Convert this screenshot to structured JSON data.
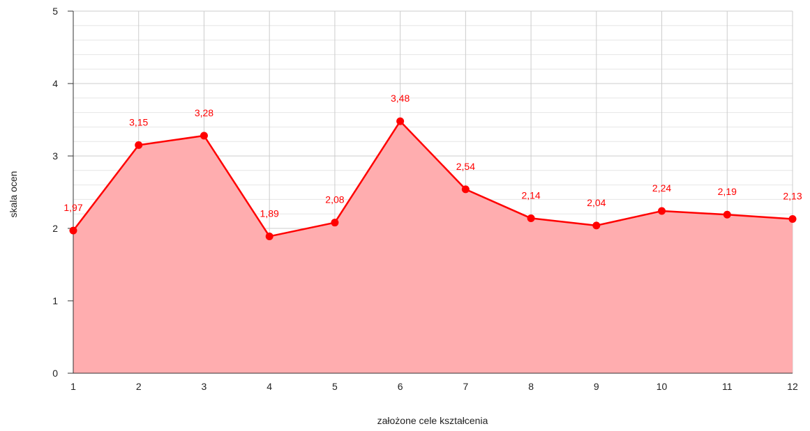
{
  "chart_data": {
    "type": "area",
    "title": "",
    "xlabel": "założone cele kształcenia",
    "ylabel": "skala ocen",
    "x": [
      1,
      2,
      3,
      4,
      5,
      6,
      7,
      8,
      9,
      10,
      11,
      12
    ],
    "x_tick_labels": [
      "1",
      "2",
      "3",
      "4",
      "5",
      "6",
      "7",
      "8",
      "9",
      "10",
      "11",
      "12"
    ],
    "y_tick_labels": [
      "0",
      "1",
      "2",
      "3",
      "4",
      "5"
    ],
    "values": [
      1.97,
      3.15,
      3.28,
      1.89,
      2.08,
      3.48,
      2.54,
      2.14,
      2.04,
      2.24,
      2.19,
      2.13
    ],
    "data_labels": [
      "1,97",
      "3,15",
      "3,28",
      "1,89",
      "2,08",
      "3,48",
      "2,54",
      "2,14",
      "2,04",
      "2,24",
      "2,19",
      "2,13"
    ],
    "ylim": [
      0,
      5
    ],
    "xlim": [
      1,
      12
    ],
    "grid": true,
    "minor_grid": true,
    "legend": "none",
    "colors": {
      "line": "#ff0000",
      "fill": "#ffadaf",
      "label": "#ff0000",
      "grid_major": "#cccccc",
      "grid_minor": "#e6e6e6",
      "axis": "#333333",
      "text": "#222222"
    }
  }
}
